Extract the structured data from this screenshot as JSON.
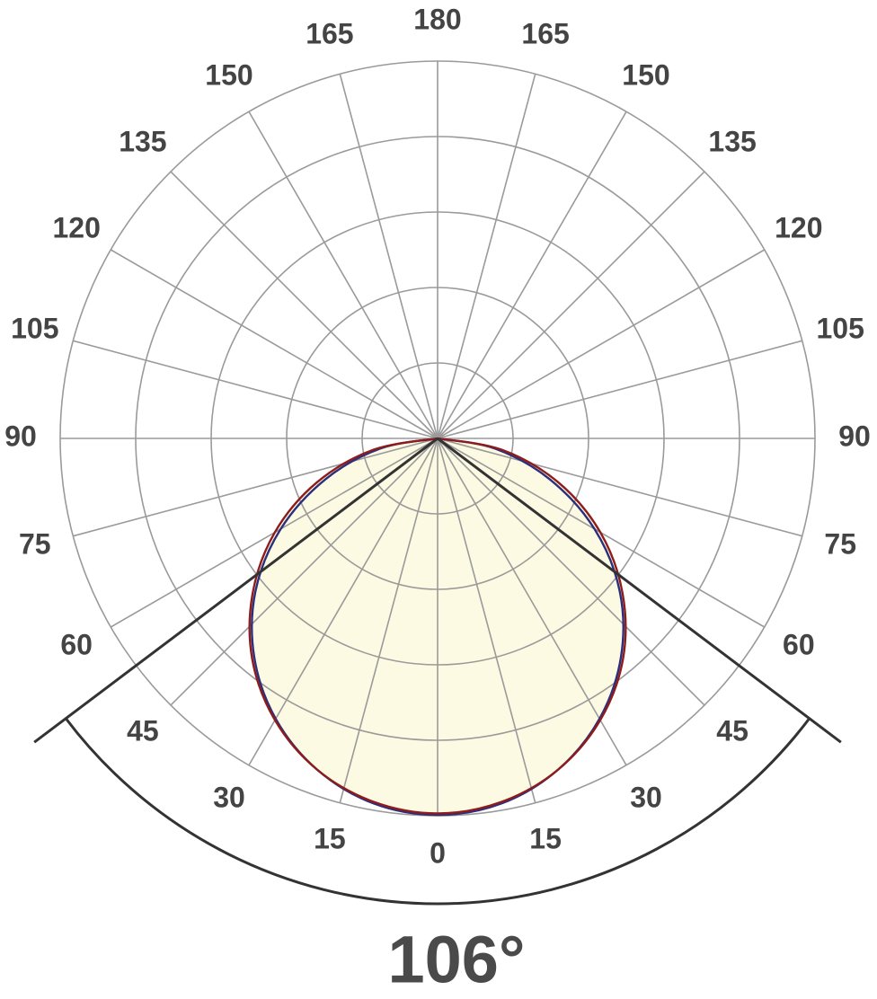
{
  "chart_data": {
    "type": "polar",
    "beam_angle": {
      "value": 106,
      "label": "106°"
    },
    "theta_ticks": [
      0,
      15,
      30,
      45,
      60,
      75,
      90,
      105,
      120,
      135,
      150,
      165,
      180
    ],
    "rlim": [
      0,
      5
    ],
    "rticks": [
      1,
      2,
      3,
      4,
      5
    ],
    "angles": [
      -90,
      -80,
      -70,
      -60,
      -50,
      -40,
      -30,
      -20,
      -10,
      0,
      10,
      20,
      30,
      40,
      50,
      60,
      70,
      80,
      90
    ],
    "fill_color": "#fcfae2",
    "series": [
      {
        "color": "#2b2f7c",
        "values": [
          0,
          0.77,
          1.58,
          2.4,
          3.15,
          3.78,
          4.29,
          4.67,
          4.91,
          4.99,
          4.91,
          4.67,
          4.29,
          3.78,
          3.15,
          2.4,
          1.58,
          0.77,
          0
        ]
      },
      {
        "color": "#8e1c1c",
        "values": [
          0,
          0.86,
          1.7,
          2.49,
          3.2,
          3.82,
          4.31,
          4.67,
          4.89,
          4.97,
          4.89,
          4.67,
          4.31,
          3.82,
          3.2,
          2.49,
          1.7,
          0.86,
          0
        ],
        "filled": true
      }
    ]
  }
}
